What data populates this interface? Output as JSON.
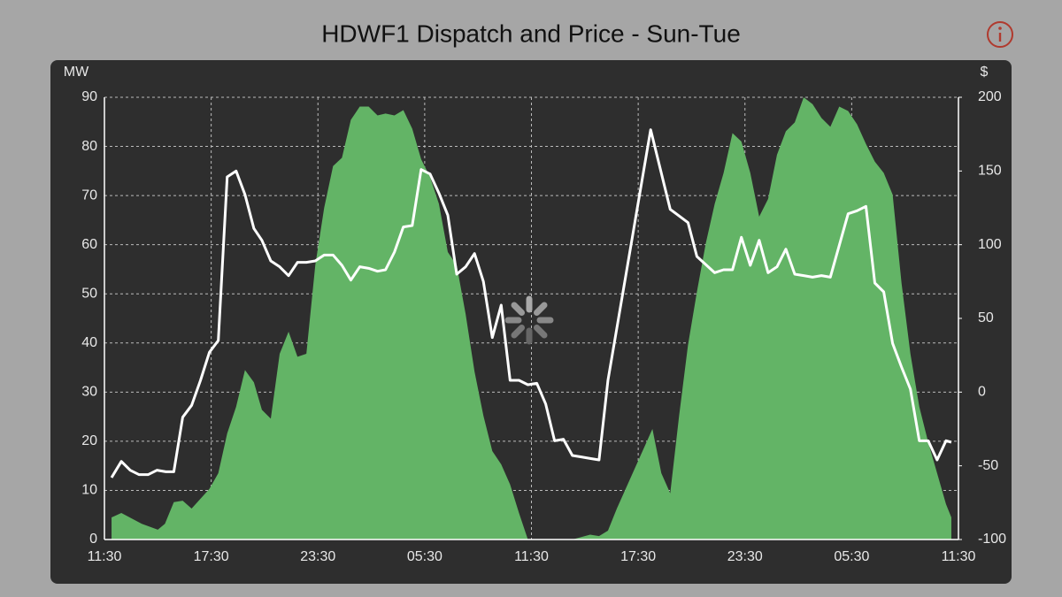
{
  "chart_data": {
    "type": "combo",
    "title": "HDWF1 Dispatch and Price - Sun-Tue",
    "y_label": "MW",
    "y2_label": "$",
    "xlim": [
      0,
      48
    ],
    "xticks": [
      {
        "value": 0,
        "label": "11:30"
      },
      {
        "value": 6,
        "label": "17:30"
      },
      {
        "value": 12,
        "label": "23:30"
      },
      {
        "value": 18,
        "label": "05:30"
      },
      {
        "value": 24,
        "label": "11:30"
      },
      {
        "value": 30,
        "label": "17:30"
      },
      {
        "value": 36,
        "label": "23:30"
      },
      {
        "value": 42,
        "label": "05:30"
      },
      {
        "value": 48,
        "label": "11:30"
      }
    ],
    "ylim": [
      0,
      90
    ],
    "yticks": [
      0,
      10,
      20,
      30,
      40,
      50,
      60,
      70,
      80,
      90
    ],
    "y2lim": [
      -100,
      200
    ],
    "y2ticks": [
      -100,
      -50,
      0,
      50,
      100,
      150,
      200
    ],
    "grid": true,
    "series": [
      {
        "type": "area",
        "color": "#63b466",
        "x": [
          0.4,
          0.95,
          2.1,
          3.0,
          3.4,
          3.9,
          4.4,
          4.9,
          5.9,
          6.4,
          6.9,
          7.4,
          7.9,
          8.4,
          8.85,
          9.35,
          9.85,
          10.35,
          10.85,
          11.35,
          11.85,
          12.35,
          12.85,
          13.35,
          13.85,
          14.35,
          14.85,
          15.35,
          15.8,
          16.3,
          16.8,
          17.3,
          17.8,
          18.3,
          18.8,
          19.3,
          19.8,
          20.3,
          20.8,
          21.3,
          21.8,
          22.3,
          22.8,
          23.3,
          23.8,
          24.3,
          26.3,
          27.3,
          27.8,
          28.3,
          28.8,
          29.8,
          30.8,
          31.3,
          31.8,
          32.3,
          32.8,
          33.3,
          33.8,
          34.3,
          34.8,
          35.3,
          35.8,
          36.3,
          36.8,
          37.3,
          37.8,
          38.3,
          38.8,
          39.3,
          39.8,
          40.3,
          40.8,
          41.3,
          41.8,
          42.3,
          42.8,
          43.3,
          43.8,
          44.3,
          44.8,
          45.3,
          45.8,
          46.3,
          46.8,
          47.3,
          47.6
        ],
        "values": [
          4.5,
          5.4,
          3.2,
          2.0,
          3.2,
          7.6,
          7.9,
          6.3,
          10.3,
          13.5,
          21.6,
          27,
          34.5,
          32,
          26.4,
          24.6,
          37.8,
          42.3,
          37.2,
          37.8,
          55.8,
          67.5,
          76,
          77.7,
          85.4,
          88.1,
          88.1,
          86.3,
          86.7,
          86.3,
          87.4,
          83.6,
          77.4,
          73.8,
          68.3,
          58.5,
          55.8,
          45.9,
          34.2,
          25.2,
          18,
          15.3,
          11.2,
          5.4,
          0,
          0,
          0,
          1,
          0.7,
          1.8,
          6.3,
          14.4,
          22.5,
          13.5,
          9.4,
          25.2,
          39.6,
          50.4,
          60.3,
          68.3,
          74.6,
          82.7,
          81,
          74.6,
          65.7,
          69.3,
          78.3,
          83.1,
          84.9,
          90,
          88.6,
          85.8,
          84,
          88.1,
          87.2,
          84.5,
          80.5,
          76.9,
          74.6,
          70.2,
          52.2,
          37.8,
          27,
          19.8,
          13.5,
          7.2,
          4.5
        ]
      },
      {
        "type": "line",
        "axis": "y2",
        "color": "#ffffff",
        "x": [
          0.4,
          0.95,
          1.45,
          1.95,
          2.45,
          2.95,
          3.45,
          3.9,
          4.4,
          4.9,
          5.4,
          5.9,
          6.4,
          6.9,
          7.4,
          7.9,
          8.4,
          8.85,
          9.35,
          9.85,
          10.35,
          10.85,
          11.35,
          11.85,
          12.35,
          12.85,
          13.35,
          13.85,
          14.35,
          14.85,
          15.35,
          15.8,
          16.3,
          16.8,
          17.3,
          17.8,
          18.3,
          18.8,
          19.3,
          19.8,
          20.3,
          20.8,
          21.3,
          21.8,
          22.3,
          22.8,
          23.3,
          23.8,
          24.3,
          24.8,
          25.3,
          25.8,
          26.3,
          26.8,
          27.3,
          27.8,
          28.3,
          30.7,
          31.8,
          32.8,
          33.3,
          34.3,
          34.8,
          35.3,
          35.8,
          36.3,
          36.8,
          37.3,
          37.8,
          38.3,
          38.8,
          39.3,
          39.8,
          40.3,
          40.8,
          41.8,
          42.3,
          42.8,
          43.3,
          43.8,
          44.3,
          44.8,
          45.3,
          45.8,
          46.3,
          46.8,
          47.3,
          47.6
        ],
        "values": [
          -58,
          -47,
          -53,
          -56,
          -56,
          -53,
          -54,
          -54,
          -17,
          -9,
          8,
          27,
          35,
          146,
          150,
          134,
          111,
          103,
          89,
          85,
          79,
          88,
          88,
          89,
          93,
          93,
          86,
          76,
          85,
          84,
          82,
          83,
          95,
          112,
          113,
          151,
          148,
          135,
          120,
          80,
          85,
          94,
          75,
          37,
          59,
          8,
          8,
          5,
          6,
          -8,
          -33,
          -32,
          -43,
          -44,
          -45,
          -46,
          8,
          178,
          124,
          115,
          92,
          81,
          83,
          83,
          105,
          86,
          103,
          81,
          85,
          97,
          80,
          79,
          78,
          79,
          78,
          121,
          123,
          126,
          74,
          68,
          33,
          17,
          2,
          -33,
          -33,
          -46,
          -33,
          -34
        ]
      }
    ]
  }
}
